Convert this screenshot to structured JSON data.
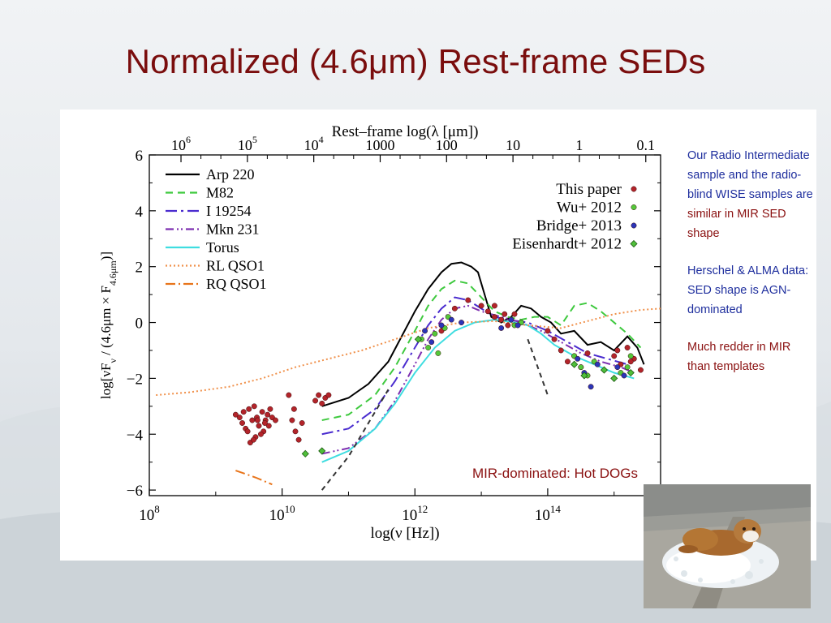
{
  "slide": {
    "title": "Normalized (4.6μm) Rest-frame SEDs"
  },
  "notes": [
    {
      "segments": [
        {
          "text": "Our Radio Intermediate sample and the radio-blind WISE samples are ",
          "color": "#1f2f9e"
        },
        {
          "text": "similar in MIR SED shape",
          "color": "#8a1010"
        }
      ]
    },
    {
      "segments": [
        {
          "text": "Herschel & ALMA data:  SED shape is AGN-dominated",
          "color": "#1f2f9e"
        }
      ]
    },
    {
      "segments": [
        {
          "text": "Much redder in MIR than templates",
          "color": "#8a1010"
        }
      ]
    }
  ],
  "photo": {
    "icon": "bulldog-on-ice-photo"
  },
  "chart_data": {
    "type": "scatter",
    "title": "",
    "xlabel": "log(ν [Hz])",
    "ylabel": "log[νFν / (4.6μm × F4.6μm)]",
    "x2label": "Rest–frame log(λ [μm])",
    "xlim": [
      8,
      15.7
    ],
    "ylim": [
      -6.2,
      6
    ],
    "x_ticks": [
      {
        "v": 8,
        "base": "10",
        "exp": "8"
      },
      {
        "v": 10,
        "base": "10",
        "exp": "10"
      },
      {
        "v": 12,
        "base": "10",
        "exp": "12"
      },
      {
        "v": 14,
        "base": "10",
        "exp": "14"
      }
    ],
    "y_ticks": [
      -6,
      -4,
      -2,
      0,
      2,
      4,
      6
    ],
    "top_ticks": [
      {
        "v": 8.477,
        "base": "10",
        "exp": "6"
      },
      {
        "v": 9.477,
        "base": "10",
        "exp": "5"
      },
      {
        "v": 10.477,
        "base": "10",
        "exp": "4"
      },
      {
        "v": 11.477,
        "base": "1000",
        "exp": ""
      },
      {
        "v": 12.477,
        "base": "100",
        "exp": ""
      },
      {
        "v": 13.477,
        "base": "10",
        "exp": ""
      },
      {
        "v": 14.477,
        "base": "1",
        "exp": ""
      },
      {
        "v": 15.477,
        "base": "0.1",
        "exp": ""
      }
    ],
    "legend_templates_position": "top-left",
    "legend_data_position": "top-right",
    "annotation": "MIR-dominated: Hot DOGs",
    "series": [
      {
        "name": "Arp 220",
        "kind": "line",
        "color": "#000000",
        "dash": "",
        "x": [
          10.6,
          11.0,
          11.3,
          11.6,
          11.8,
          12.0,
          12.2,
          12.4,
          12.55,
          12.7,
          12.85,
          12.95,
          13.05,
          13.15,
          13.3,
          13.45,
          13.6,
          13.75,
          13.9,
          14.05,
          14.2,
          14.4,
          14.6,
          14.8,
          15.0,
          15.2,
          15.35,
          15.45
        ],
        "y": [
          -3.0,
          -2.7,
          -2.2,
          -1.4,
          -0.5,
          0.4,
          1.2,
          1.8,
          2.1,
          2.15,
          2.0,
          1.8,
          1.0,
          0.2,
          0.0,
          0.2,
          0.6,
          0.5,
          0.2,
          0.0,
          -0.4,
          -0.3,
          -0.8,
          -0.7,
          -1.0,
          -0.5,
          -0.9,
          -1.5
        ]
      },
      {
        "name": "M82",
        "kind": "line",
        "color": "#3ec93e",
        "dash": "9,6",
        "x": [
          10.6,
          11.0,
          11.4,
          11.7,
          12.0,
          12.2,
          12.4,
          12.6,
          12.8,
          13.0,
          13.2,
          13.4,
          13.6,
          13.8,
          14.0,
          14.2,
          14.4,
          14.6,
          14.8,
          15.0,
          15.2,
          15.4
        ],
        "y": [
          -3.5,
          -3.3,
          -2.6,
          -1.6,
          -0.3,
          0.6,
          1.2,
          1.5,
          1.4,
          0.9,
          0.4,
          0.2,
          0.1,
          0.2,
          0.2,
          -0.1,
          0.6,
          0.7,
          0.4,
          0.0,
          -0.4,
          -0.9
        ]
      },
      {
        "name": "I 19254",
        "kind": "line",
        "color": "#4a2ccf",
        "dash": "14,5,3,5",
        "x": [
          10.6,
          11.0,
          11.4,
          11.7,
          12.0,
          12.2,
          12.4,
          12.6,
          12.8,
          13.0,
          13.2,
          13.4,
          13.7,
          14.0,
          14.3,
          14.6,
          14.9,
          15.2
        ],
        "y": [
          -4.0,
          -3.8,
          -3.1,
          -2.1,
          -0.9,
          -0.1,
          0.5,
          0.9,
          0.8,
          0.5,
          0.2,
          0.1,
          0.0,
          -0.3,
          -0.7,
          -1.1,
          -1.3,
          -1.5
        ]
      },
      {
        "name": "Mkn 231",
        "kind": "line",
        "color": "#7d2fb0",
        "dash": "10,4,2,3,2,4",
        "x": [
          10.6,
          11.0,
          11.4,
          11.7,
          12.0,
          12.2,
          12.4,
          12.6,
          12.8,
          13.0,
          13.3,
          13.6,
          13.9,
          14.2,
          14.5,
          14.8,
          15.1,
          15.3
        ],
        "y": [
          -4.7,
          -4.5,
          -3.8,
          -2.8,
          -1.5,
          -0.6,
          0.1,
          0.5,
          0.6,
          0.4,
          0.2,
          0.0,
          -0.3,
          -0.7,
          -1.1,
          -1.4,
          -1.6,
          -1.8
        ]
      },
      {
        "name": "Torus",
        "kind": "line",
        "color": "#3fdde0",
        "dash": "",
        "x": [
          10.6,
          11.0,
          11.4,
          11.7,
          12.0,
          12.3,
          12.6,
          12.9,
          13.2,
          13.5,
          13.7,
          13.9,
          14.1,
          14.4,
          14.7,
          15.0,
          15.3
        ],
        "y": [
          -5.0,
          -4.6,
          -3.8,
          -2.9,
          -1.8,
          -0.9,
          -0.3,
          0.0,
          0.1,
          0.0,
          -0.1,
          -0.4,
          -0.8,
          -1.2,
          -1.5,
          -1.8,
          -2.0
        ]
      },
      {
        "name": "RL QSO1",
        "kind": "line",
        "color": "#f0904a",
        "dash": "2,3",
        "x": [
          8.1,
          8.6,
          9.2,
          9.7,
          10.2,
          10.7,
          11.2,
          11.7,
          12.2,
          12.7,
          13.2,
          13.7,
          14.2,
          14.6,
          15.0,
          15.4,
          15.7
        ],
        "y": [
          -2.6,
          -2.5,
          -2.3,
          -2.0,
          -1.6,
          -1.3,
          -1.0,
          -0.6,
          -0.2,
          0.0,
          0.05,
          -0.1,
          -0.2,
          0.05,
          0.3,
          0.45,
          0.5
        ]
      },
      {
        "name": "RQ QSO1",
        "kind": "line",
        "color": "#e8741a",
        "dash": "12,4,2,4",
        "x": [
          9.3,
          9.6,
          9.85
        ],
        "y": [
          -5.3,
          -5.55,
          -5.8
        ]
      },
      {
        "name": "",
        "kind": "line",
        "color": "#333333",
        "dash": "6,5",
        "x": [
          10.6,
          11.0,
          11.3,
          11.6
        ],
        "y": [
          -6.0,
          -4.8,
          -3.6,
          -2.4
        ]
      },
      {
        "name": "",
        "kind": "line",
        "color": "#333333",
        "dash": "6,5",
        "x": [
          13.7,
          13.85,
          14.0
        ],
        "y": [
          -0.6,
          -1.6,
          -2.6
        ]
      },
      {
        "name": "This paper",
        "kind": "points",
        "color": "#b3242a",
        "marker": "circle",
        "x": [
          9.3,
          9.4,
          9.45,
          9.5,
          9.55,
          9.6,
          9.62,
          9.65,
          9.7,
          9.72,
          9.75,
          9.78,
          9.8,
          9.85,
          9.9,
          9.42,
          9.52,
          9.58,
          9.68,
          9.74,
          9.48,
          9.36,
          9.82,
          9.63,
          9.57,
          10.1,
          10.15,
          10.2,
          10.25,
          10.3,
          10.18,
          10.5,
          10.55,
          10.6,
          10.65,
          10.7,
          12.4,
          12.6,
          12.8,
          13.0,
          13.1,
          13.2,
          13.3,
          13.4,
          13.5,
          13.6,
          13.2,
          13.35,
          14.0,
          14.1,
          14.2,
          14.3,
          14.4,
          14.5,
          14.6,
          15.0,
          15.1,
          15.2,
          15.3,
          15.4,
          15.05,
          15.25
        ],
        "y": [
          -3.3,
          -3.6,
          -3.8,
          -3.1,
          -3.5,
          -4.1,
          -3.4,
          -3.7,
          -3.2,
          -3.9,
          -3.5,
          -3.3,
          -3.7,
          -3.4,
          -3.5,
          -3.2,
          -4.3,
          -3.0,
          -4.0,
          -3.6,
          -3.9,
          -3.4,
          -3.1,
          -3.5,
          -4.2,
          -2.6,
          -3.5,
          -3.9,
          -4.2,
          -3.6,
          -3.1,
          -2.8,
          -2.6,
          -2.9,
          -2.7,
          -2.6,
          -0.3,
          0.5,
          0.8,
          0.6,
          0.4,
          0.2,
          0.1,
          -0.1,
          0.3,
          0.0,
          0.6,
          0.3,
          -0.3,
          -0.6,
          -1.0,
          -1.4,
          -1.2,
          -1.6,
          -1.1,
          -1.2,
          -1.5,
          -0.9,
          -1.3,
          -1.7,
          -1.0,
          -1.4
        ]
      },
      {
        "name": "Wu+ 2012",
        "kind": "points",
        "color": "#54c83a",
        "marker": "circle",
        "x": [
          12.1,
          12.2,
          12.3,
          12.35,
          12.45,
          12.5,
          13.5,
          13.6,
          14.4,
          14.5,
          14.6,
          14.7,
          15.1,
          15.2,
          15.25
        ],
        "y": [
          -0.6,
          -0.9,
          -0.4,
          -1.1,
          -0.2,
          0.2,
          -0.1,
          0.0,
          -1.2,
          -1.6,
          -1.9,
          -1.4,
          -1.8,
          -1.6,
          -1.2
        ]
      },
      {
        "name": "Bridge+ 2013",
        "kind": "points",
        "color": "#2b35b8",
        "marker": "circle",
        "x": [
          12.15,
          12.25,
          12.4,
          12.55,
          12.7,
          13.3,
          13.45,
          13.55,
          14.45,
          14.55,
          14.65,
          14.75,
          15.05,
          15.15
        ],
        "y": [
          -0.3,
          -0.7,
          -0.1,
          0.1,
          0.0,
          -0.2,
          0.1,
          -0.1,
          -1.3,
          -1.8,
          -2.3,
          -1.5,
          -1.6,
          -1.9
        ]
      },
      {
        "name": "Eisenhardt+ 2012",
        "kind": "points",
        "color": "#4fbf3a",
        "marker": "diamond",
        "x": [
          10.35,
          10.6,
          12.05,
          14.4,
          14.55,
          14.85,
          15.0,
          15.25
        ],
        "y": [
          -4.7,
          -4.6,
          -0.6,
          -1.5,
          -1.9,
          -1.7,
          -2.0,
          -1.8
        ]
      }
    ]
  }
}
